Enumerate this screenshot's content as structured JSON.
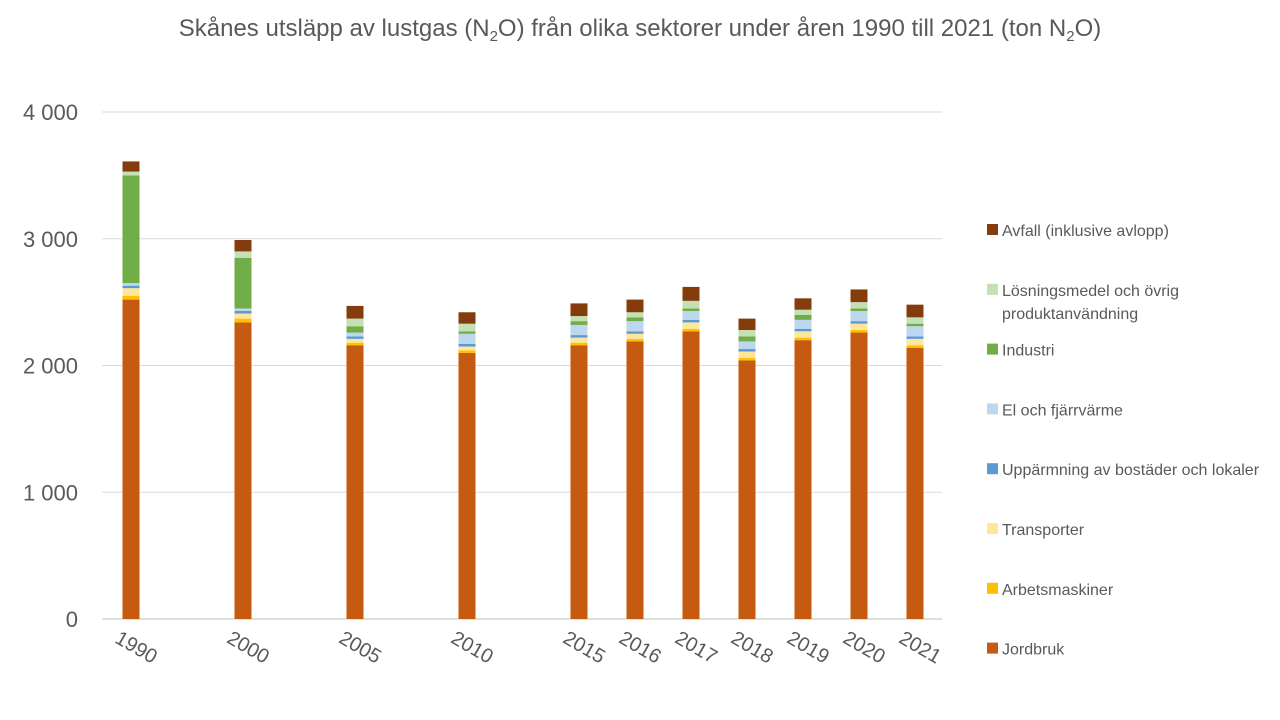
{
  "chart_data": {
    "type": "bar",
    "stacked": true,
    "title": "Skånes utsläpp av lustgas (N2O) från olika sektorer under åren 1990 till 2021 (ton N2O)",
    "title_parts": {
      "main": "Skånes utsläpp av lustgas (N",
      "sub1": "2",
      "mid": "O) från olika sektorer under åren 1990 till 2021 (ton N",
      "sub2": "2",
      "end": "O)"
    },
    "categories": [
      "1990",
      "2000",
      "2005",
      "2010",
      "2015",
      "2016",
      "2017",
      "2018",
      "2019",
      "2020",
      "2021"
    ],
    "ylim": [
      0,
      4000
    ],
    "yticks": [
      0,
      1000,
      2000,
      3000,
      4000
    ],
    "ytick_labels": [
      "0",
      "1 000",
      "2 000",
      "3 000",
      "4 000"
    ],
    "grid": true,
    "legend_position": "right",
    "series": [
      {
        "name": "Jordbruk",
        "color": "#C55A11",
        "values": [
          2520,
          2340,
          2160,
          2100,
          2160,
          2190,
          2270,
          2040,
          2200,
          2260,
          2140
        ]
      },
      {
        "name": "Arbetsmaskiner",
        "color": "#FFC000",
        "values": [
          30,
          30,
          20,
          20,
          20,
          20,
          20,
          20,
          20,
          20,
          20
        ]
      },
      {
        "name": "Transporter",
        "color": "#FFE699",
        "values": [
          60,
          40,
          30,
          30,
          40,
          40,
          50,
          50,
          50,
          50,
          50
        ]
      },
      {
        "name": "Uppärmning av bostäder och lokaler",
        "color": "#5B9BD5",
        "values": [
          20,
          20,
          20,
          20,
          20,
          20,
          20,
          20,
          20,
          20,
          20
        ]
      },
      {
        "name": "El och fjärrvärme",
        "color": "#BDD7EE",
        "values": [
          20,
          20,
          30,
          80,
          80,
          80,
          70,
          60,
          70,
          80,
          80
        ]
      },
      {
        "name": "Industri",
        "color": "#70AD47",
        "values": [
          850,
          400,
          50,
          20,
          30,
          30,
          20,
          40,
          40,
          20,
          20
        ]
      },
      {
        "name": "Lösningsmedel och övrig produktanvändning",
        "color": "#C5E0B4",
        "values": [
          30,
          50,
          60,
          60,
          40,
          40,
          60,
          50,
          40,
          50,
          50
        ]
      },
      {
        "name": "Avfall (inklusive avlopp)",
        "color": "#843C0C",
        "values": [
          80,
          90,
          100,
          90,
          100,
          100,
          110,
          90,
          90,
          100,
          100
        ]
      }
    ]
  }
}
